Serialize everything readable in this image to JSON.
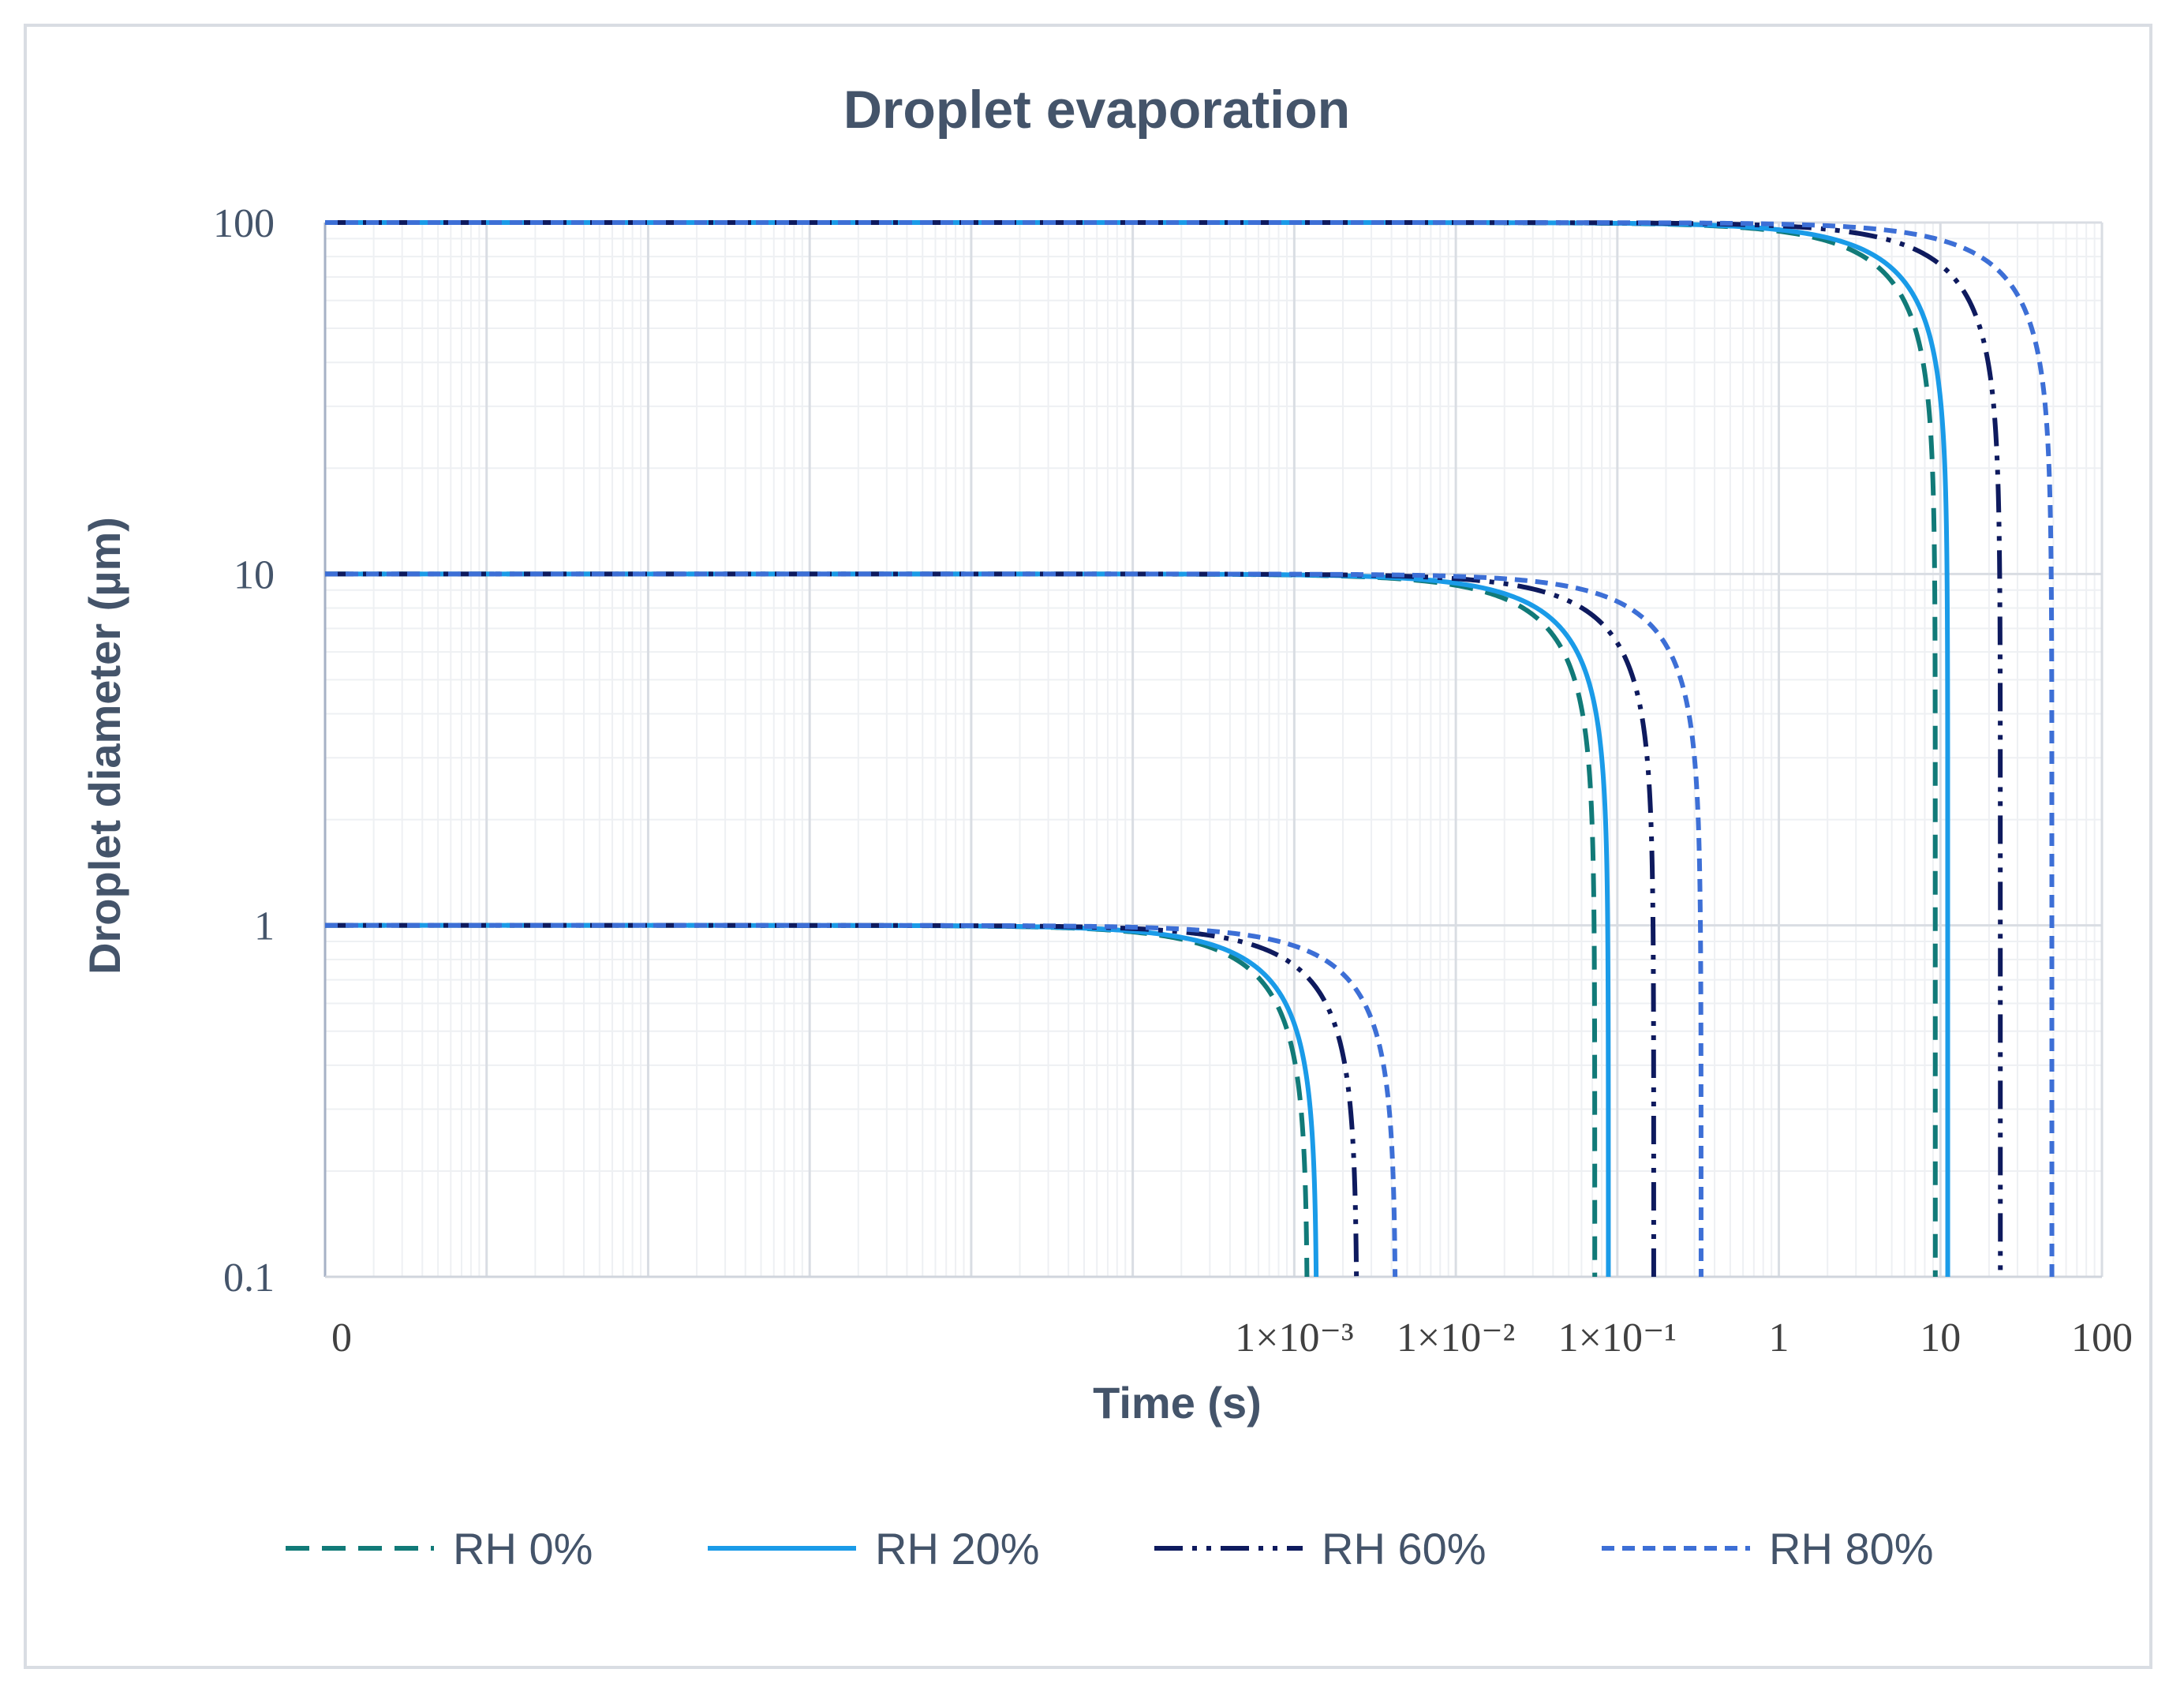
{
  "chart_data": {
    "type": "line",
    "title": "Droplet evaporation",
    "xlabel": "Time (s)",
    "ylabel": "Droplet diameter (µm)",
    "x_scale": "log",
    "y_scale": "log",
    "xlim": [
      1e-09,
      100
    ],
    "ylim": [
      0.1,
      100
    ],
    "grid": true,
    "legend_position": "bottom",
    "y_ticks": [
      {
        "value": 0.1,
        "label": "0.1"
      },
      {
        "value": 1,
        "label": "1"
      },
      {
        "value": 10,
        "label": "10"
      },
      {
        "value": 100,
        "label": "100"
      }
    ],
    "x_ticks": [
      {
        "value": 1e-09,
        "label": "0"
      },
      {
        "value": 0.001,
        "label": "1×10⁻³"
      },
      {
        "value": 0.01,
        "label": "1×10⁻²"
      },
      {
        "value": 0.1,
        "label": "1×10⁻¹"
      },
      {
        "value": 1,
        "label": "1"
      },
      {
        "value": 10,
        "label": "10"
      },
      {
        "value": 100,
        "label": "100"
      }
    ],
    "series": [
      {
        "name": "RH 0%",
        "color": "#117a78",
        "style": "dashed",
        "curves": [
          {
            "initial_diameter": 1,
            "lifetime": 0.00121
          },
          {
            "initial_diameter": 10,
            "lifetime": 0.0725
          },
          {
            "initial_diameter": 100,
            "lifetime": 9.3
          }
        ]
      },
      {
        "name": "RH 20%",
        "color": "#1a9be8",
        "style": "solid",
        "curves": [
          {
            "initial_diameter": 1,
            "lifetime": 0.00138
          },
          {
            "initial_diameter": 10,
            "lifetime": 0.088
          },
          {
            "initial_diameter": 100,
            "lifetime": 11.1
          }
        ]
      },
      {
        "name": "RH 60%",
        "color": "#0e1a5e",
        "style": "dash-dot-dot",
        "curves": [
          {
            "initial_diameter": 1,
            "lifetime": 0.00245
          },
          {
            "initial_diameter": 10,
            "lifetime": 0.168
          },
          {
            "initial_diameter": 100,
            "lifetime": 23.5
          }
        ]
      },
      {
        "name": "RH 80%",
        "color": "#3d6fd6",
        "style": "short-dash",
        "curves": [
          {
            "initial_diameter": 1,
            "lifetime": 0.00425
          },
          {
            "initial_diameter": 10,
            "lifetime": 0.33
          },
          {
            "initial_diameter": 100,
            "lifetime": 49.0
          }
        ]
      }
    ]
  }
}
